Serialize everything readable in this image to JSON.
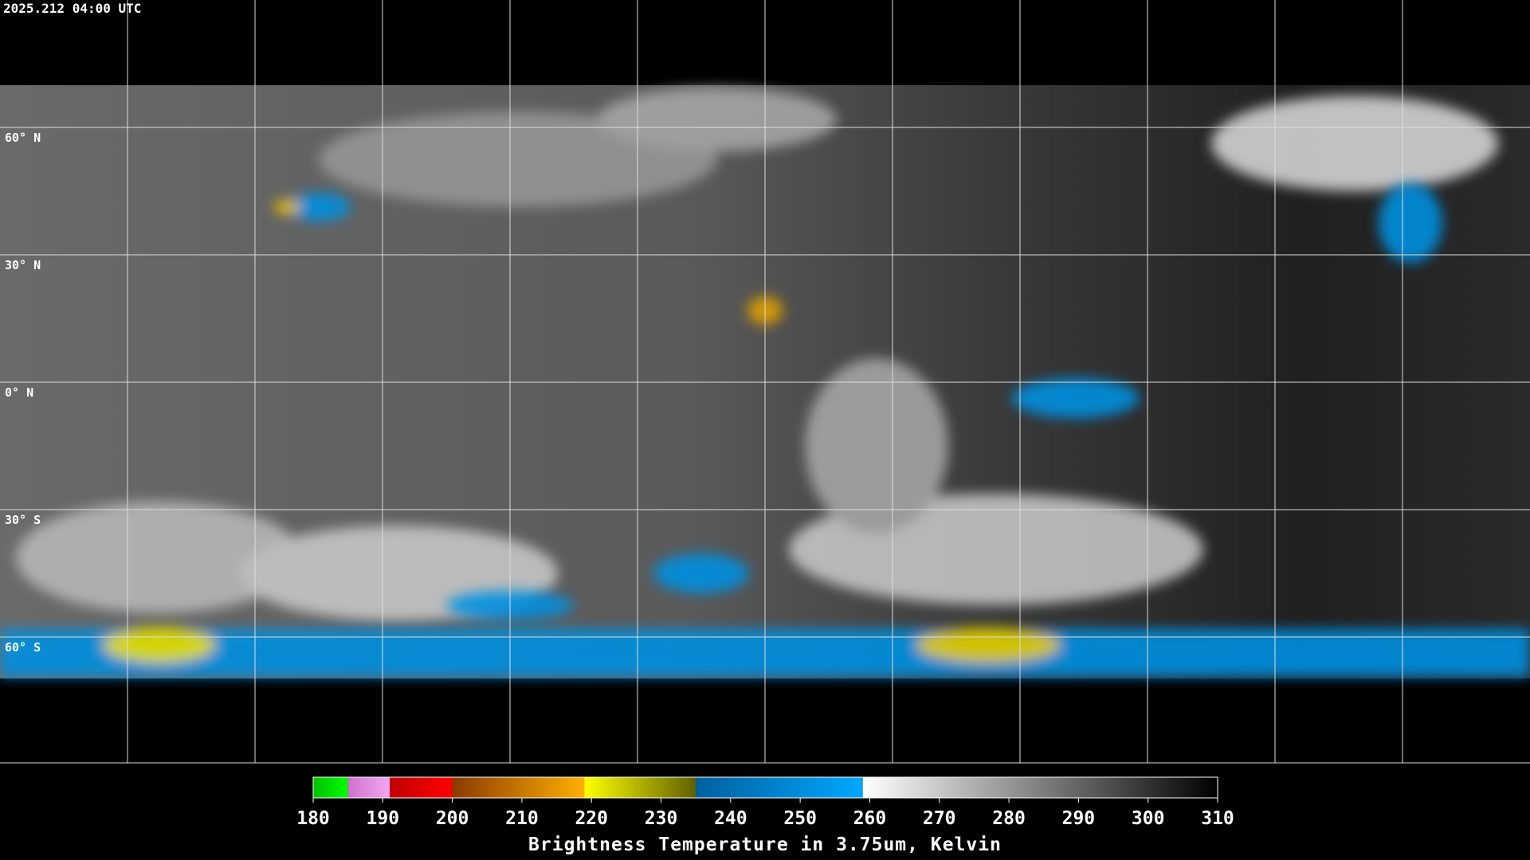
{
  "header": {
    "timestamp": "2025.212 04:00 UTC"
  },
  "map": {
    "lat_labels": [
      "60° N",
      "30° N",
      "0° N",
      "30° S",
      "60° S"
    ]
  },
  "colorbar": {
    "title": "Brightness Temperature in 3.75um, Kelvin",
    "range": [
      180,
      310
    ],
    "ticks": [
      180,
      190,
      200,
      210,
      220,
      230,
      240,
      250,
      260,
      270,
      280,
      290,
      300,
      310
    ],
    "segments": [
      {
        "from": 180,
        "to": 185,
        "start_color": "#00c000",
        "end_color": "#00ff00"
      },
      {
        "from": 185,
        "to": 191,
        "start_color": "#d070d0",
        "end_color": "#f0a8f0"
      },
      {
        "from": 191,
        "to": 200,
        "start_color": "#c00000",
        "end_color": "#ff0000"
      },
      {
        "from": 200,
        "to": 219,
        "start_color": "#8b3a00",
        "end_color": "#ffb000"
      },
      {
        "from": 219,
        "to": 235,
        "start_color": "#ffff00",
        "end_color": "#606000"
      },
      {
        "from": 235,
        "to": 259,
        "start_color": "#0060a0",
        "end_color": "#00a8ff"
      },
      {
        "from": 259,
        "to": 310,
        "start_color": "#ffffff",
        "end_color": "#000000"
      }
    ]
  }
}
